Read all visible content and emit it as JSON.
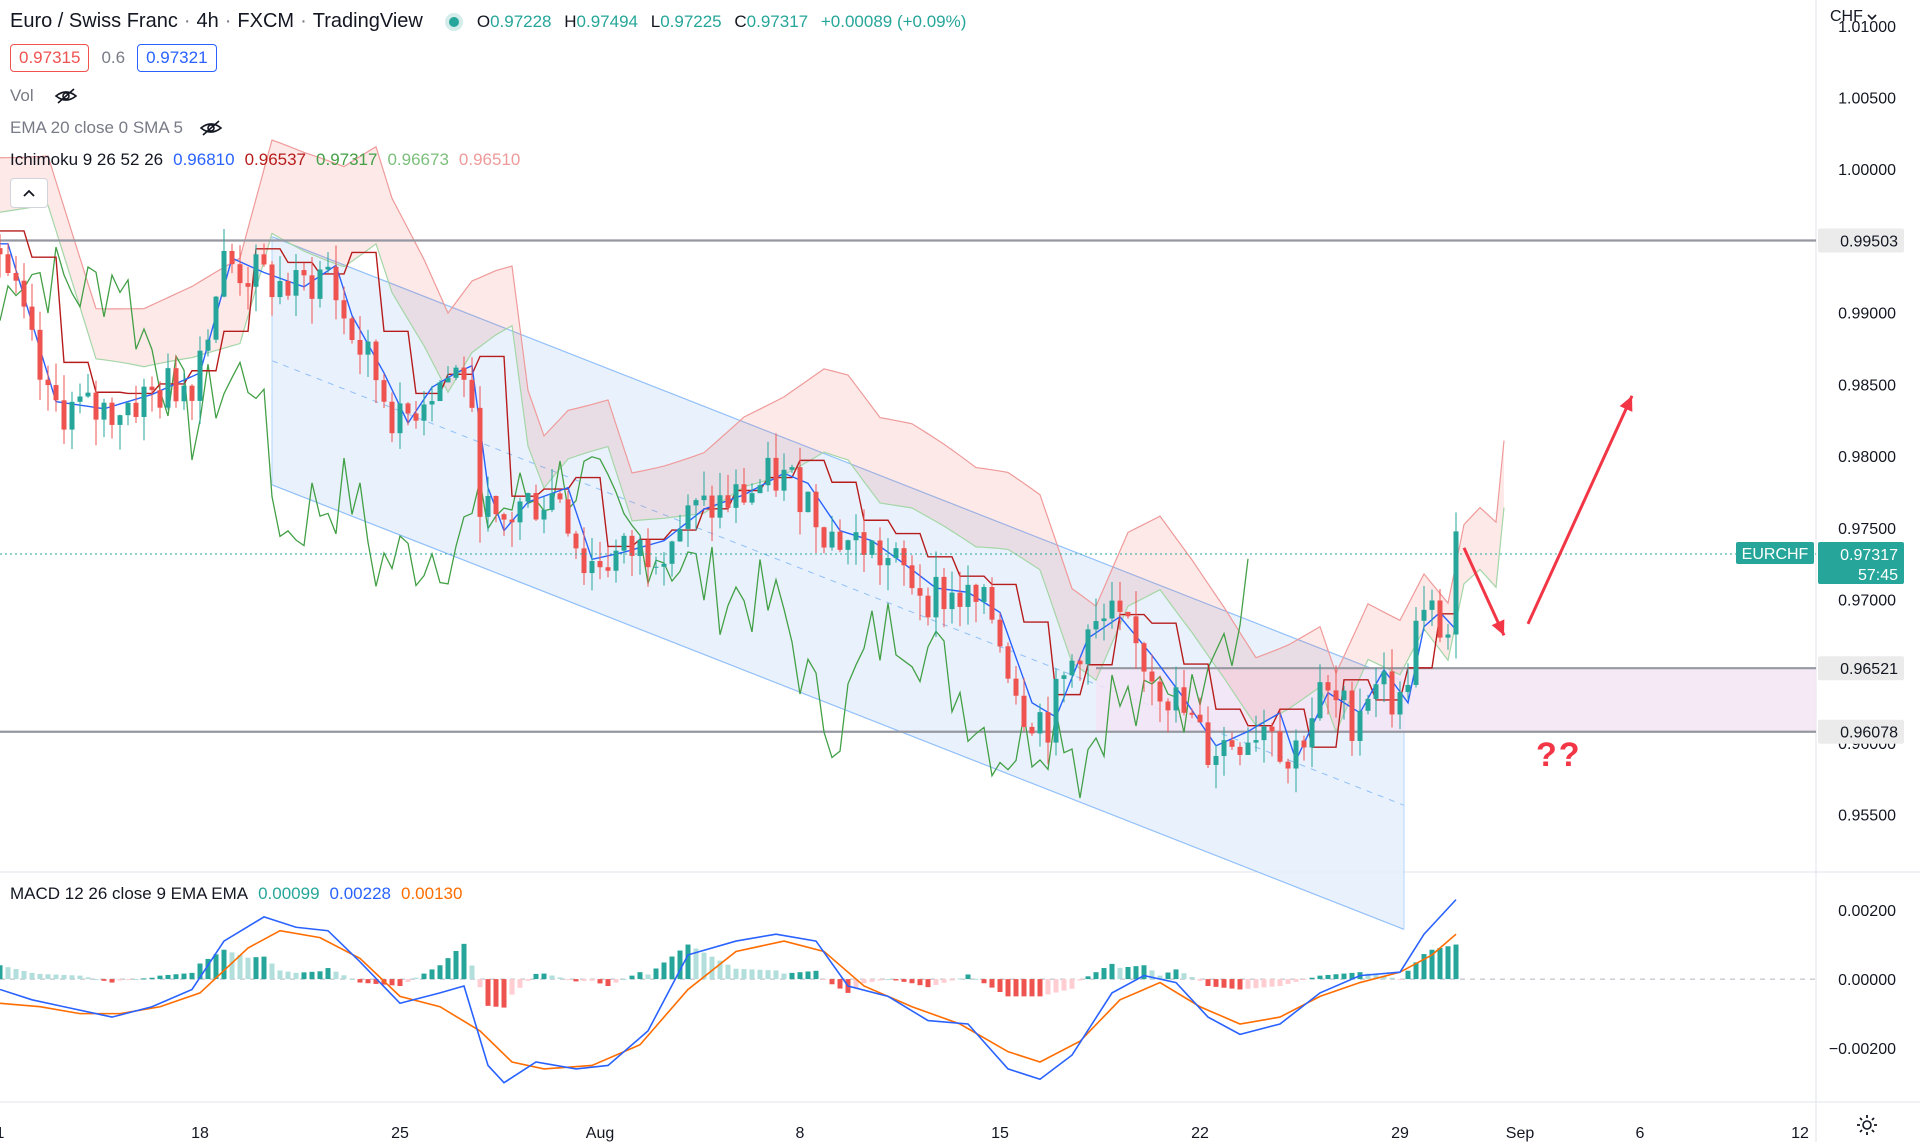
{
  "header": {
    "symbol": "Euro / Swiss Franc",
    "interval": "4h",
    "exchange": "FXCM",
    "source": "TradingView",
    "ohlc": {
      "o_label": "O",
      "o": "0.97228",
      "h_label": "H",
      "h": "0.97494",
      "l_label": "L",
      "l": "0.97225",
      "c_label": "C",
      "c": "0.97317",
      "change": "+0.00089 (+0.09%)"
    },
    "sell_price": "0.97315",
    "spread": "0.6",
    "buy_price": "0.97321"
  },
  "indicators": {
    "vol_label": "Vol",
    "ema_label": "EMA 20 close 0 SMA 5",
    "ichimoku_label": "Ichimoku 9 26 52 26",
    "ichimoku_values": [
      "0.96810",
      "0.96537",
      "0.97317",
      "0.96673",
      "0.96510"
    ],
    "ichimoku_colors": [
      "#2962ff",
      "#b71c1c",
      "#43a047",
      "#7cbf7c",
      "#ef9a9a"
    ],
    "macd_label": "MACD 12 26 close 9 EMA EMA",
    "macd_values": [
      "0.00099",
      "0.00228",
      "0.00130"
    ],
    "macd_colors": [
      "#26a69a",
      "#2962ff",
      "#ff6d00"
    ]
  },
  "axis": {
    "currency": "CHF",
    "price_ticks": [
      "1.01000",
      "1.00500",
      "1.00000",
      "0.99000",
      "0.98500",
      "0.98000",
      "0.97500",
      "0.97000",
      "0.96000",
      "0.95500"
    ],
    "macd_ticks": [
      "0.00200",
      "0.00000",
      "−0.00200"
    ],
    "x_ticks": [
      "1",
      "18",
      "25",
      "Aug",
      "8",
      "15",
      "22",
      "29",
      "Sep",
      "6",
      "12"
    ]
  },
  "levels": {
    "resistance": "0.99503",
    "middle": "0.96521",
    "support": "0.96078"
  },
  "last_price": {
    "symbol": "EURCHF",
    "price": "0.97317",
    "countdown": "57:45"
  },
  "annotation": "??",
  "colors": {
    "up": "#26a69a",
    "down": "#ef5350",
    "channel": "#e3effb",
    "arrow": "#f23645",
    "level_line": "#787b86"
  },
  "chart_data": {
    "type": "candlestick",
    "title": "Euro / Swiss Franc 4h FXCM",
    "ylim": [
      0.951,
      1.0118
    ],
    "macd_ylim": [
      -0.0035,
      0.0031
    ],
    "x_range": [
      0,
      227
    ],
    "x_ticks": [
      {
        "label": "1",
        "x": 0
      },
      {
        "label": "18",
        "x": 25
      },
      {
        "label": "25",
        "x": 50
      },
      {
        "label": "Aug",
        "x": 75
      },
      {
        "label": "8",
        "x": 100
      },
      {
        "label": "15",
        "x": 125
      },
      {
        "label": "22",
        "x": 150
      },
      {
        "label": "29",
        "x": 175
      },
      {
        "label": "Sep",
        "x": 190
      },
      {
        "label": "6",
        "x": 205
      },
      {
        "label": "12",
        "x": 225
      }
    ],
    "price_path": [
      [
        0,
        0.9945
      ],
      [
        6,
        0.9835
      ],
      [
        12,
        0.983
      ],
      [
        18,
        0.984
      ],
      [
        24,
        0.9855
      ],
      [
        28,
        0.9935
      ],
      [
        32,
        0.9925
      ],
      [
        37,
        0.9915
      ],
      [
        41,
        0.993
      ],
      [
        43,
        0.9895
      ],
      [
        47,
        0.9855
      ],
      [
        50,
        0.982
      ],
      [
        53,
        0.9845
      ],
      [
        56,
        0.9855
      ],
      [
        58,
        0.986
      ],
      [
        60,
        0.9775
      ],
      [
        62,
        0.9745
      ],
      [
        65,
        0.9765
      ],
      [
        70,
        0.9775
      ],
      [
        73,
        0.9725
      ],
      [
        77,
        0.973
      ],
      [
        82,
        0.9738
      ],
      [
        87,
        0.976
      ],
      [
        92,
        0.977
      ],
      [
        97,
        0.9785
      ],
      [
        100,
        0.9778
      ],
      [
        104,
        0.9745
      ],
      [
        108,
        0.9738
      ],
      [
        112,
        0.9722
      ],
      [
        116,
        0.9705
      ],
      [
        120,
        0.9702
      ],
      [
        124,
        0.9688
      ],
      [
        128,
        0.9625
      ],
      [
        131,
        0.9615
      ],
      [
        135,
        0.967
      ],
      [
        139,
        0.9685
      ],
      [
        143,
        0.9658
      ],
      [
        147,
        0.9628
      ],
      [
        151,
        0.9595
      ],
      [
        155,
        0.9605
      ],
      [
        159,
        0.9618
      ],
      [
        161,
        0.9585
      ],
      [
        165,
        0.9632
      ],
      [
        169,
        0.9618
      ],
      [
        172,
        0.9648
      ],
      [
        175,
        0.9625
      ],
      [
        177,
        0.9678
      ],
      [
        179,
        0.9688
      ],
      [
        181,
        0.9676
      ],
      [
        182,
        0.9732
      ]
    ],
    "macd": {
      "macd_path": [
        [
          0,
          -0.0003
        ],
        [
          4,
          -0.0006
        ],
        [
          8,
          -0.0008
        ],
        [
          14,
          -0.0011
        ],
        [
          19,
          -0.0008
        ],
        [
          24,
          -0.0003
        ],
        [
          28,
          0.0011
        ],
        [
          33,
          0.0018
        ],
        [
          37,
          0.0015
        ],
        [
          41,
          0.0014
        ],
        [
          45,
          0.0005
        ],
        [
          50,
          -0.0007
        ],
        [
          55,
          -0.0004
        ],
        [
          58,
          -0.0002
        ],
        [
          61,
          -0.0025
        ],
        [
          63,
          -0.003
        ],
        [
          67,
          -0.0024
        ],
        [
          72,
          -0.0026
        ],
        [
          76,
          -0.0025
        ],
        [
          81,
          -0.0015
        ],
        [
          86,
          0.0007
        ],
        [
          92,
          0.0011
        ],
        [
          97,
          0.0013
        ],
        [
          102,
          0.0011
        ],
        [
          106,
          -0.0002
        ],
        [
          111,
          -0.0005
        ],
        [
          116,
          -0.0012
        ],
        [
          121,
          -0.0013
        ],
        [
          126,
          -0.0026
        ],
        [
          130,
          -0.0029
        ],
        [
          134,
          -0.0022
        ],
        [
          139,
          -0.0004
        ],
        [
          143,
          0.0001
        ],
        [
          147,
          -0.0001
        ],
        [
          151,
          -0.0011
        ],
        [
          155,
          -0.0016
        ],
        [
          160,
          -0.0013
        ],
        [
          165,
          -0.0004
        ],
        [
          170,
          0.0001
        ],
        [
          175,
          0.0002
        ],
        [
          178,
          0.0013
        ],
        [
          182,
          0.0023
        ]
      ],
      "signal_path": [
        [
          0,
          -0.0007
        ],
        [
          5,
          -0.0008
        ],
        [
          10,
          -0.001
        ],
        [
          15,
          -0.001
        ],
        [
          20,
          -0.0008
        ],
        [
          25,
          -0.0004
        ],
        [
          31,
          0.0009
        ],
        [
          35,
          0.0014
        ],
        [
          40,
          0.0012
        ],
        [
          45,
          0.0006
        ],
        [
          50,
          -0.0005
        ],
        [
          55,
          -0.0008
        ],
        [
          60,
          -0.0015
        ],
        [
          64,
          -0.0024
        ],
        [
          68,
          -0.0026
        ],
        [
          74,
          -0.0025
        ],
        [
          80,
          -0.0019
        ],
        [
          86,
          -0.0003
        ],
        [
          92,
          0.0008
        ],
        [
          98,
          0.0011
        ],
        [
          103,
          0.0008
        ],
        [
          108,
          -0.0002
        ],
        [
          114,
          -0.0008
        ],
        [
          120,
          -0.0013
        ],
        [
          126,
          -0.0021
        ],
        [
          130,
          -0.0024
        ],
        [
          135,
          -0.0018
        ],
        [
          140,
          -0.0006
        ],
        [
          145,
          -0.0001
        ],
        [
          150,
          -0.0008
        ],
        [
          155,
          -0.0013
        ],
        [
          160,
          -0.0011
        ],
        [
          165,
          -0.0005
        ],
        [
          170,
          -0.0001
        ],
        [
          175,
          0.0002
        ],
        [
          179,
          0.0007
        ],
        [
          182,
          0.0013
        ]
      ]
    }
  }
}
